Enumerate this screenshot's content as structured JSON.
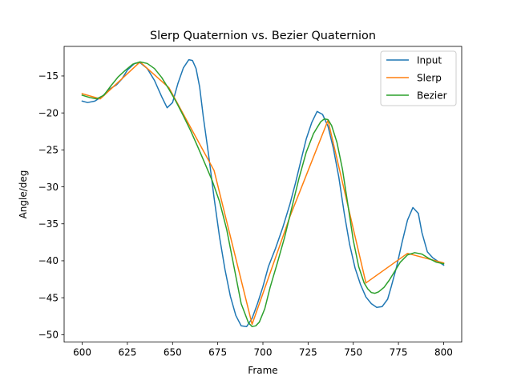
{
  "chart_data": {
    "type": "line",
    "title": "Slerp Quaternion vs. Bezier Quaternion",
    "xlabel": "Frame",
    "ylabel": "Angle/deg",
    "xlim": [
      590,
      810
    ],
    "ylim": [
      -51,
      -11
    ],
    "xticks": [
      600,
      625,
      650,
      675,
      700,
      725,
      750,
      775,
      800
    ],
    "yticks": [
      -15,
      -20,
      -25,
      -30,
      -35,
      -40,
      -45,
      -50
    ],
    "xtick_labels": [
      "600",
      "625",
      "650",
      "675",
      "700",
      "725",
      "750",
      "775",
      "800"
    ],
    "ytick_labels": [
      "−15",
      "−20",
      "−25",
      "−30",
      "−35",
      "−40",
      "−45",
      "−50"
    ],
    "grid": false,
    "legend_position": "top-right",
    "series": [
      {
        "name": "Input",
        "color": "#1f77b4",
        "x": [
          600,
          603,
          607,
          611,
          615,
          619,
          622,
          625,
          629,
          632,
          636,
          640,
          644,
          647,
          650,
          653,
          656,
          659,
          661,
          663,
          665,
          667,
          670,
          673,
          676,
          679,
          682,
          685,
          688,
          691,
          694,
          697,
          700,
          703,
          707,
          711,
          715,
          718,
          721,
          724,
          727,
          730,
          733,
          736,
          739,
          742,
          745,
          748,
          751,
          754,
          757,
          760,
          763,
          766,
          769,
          771,
          774,
          777,
          780,
          783,
          786,
          788,
          791,
          794,
          797,
          800
        ],
        "y": [
          -18.4,
          -18.6,
          -18.4,
          -17.8,
          -16.8,
          -16.2,
          -15.4,
          -14.2,
          -13.3,
          -13.2,
          -14.0,
          -15.6,
          -17.8,
          -19.3,
          -18.6,
          -16.0,
          -13.9,
          -12.8,
          -12.9,
          -14.0,
          -16.5,
          -20.5,
          -25.8,
          -31.5,
          -36.8,
          -41.2,
          -44.8,
          -47.4,
          -48.8,
          -48.9,
          -47.8,
          -45.8,
          -43.5,
          -40.8,
          -38.3,
          -35.5,
          -32.3,
          -29.5,
          -26.5,
          -23.5,
          -21.3,
          -19.8,
          -20.2,
          -21.8,
          -24.8,
          -28.7,
          -33.6,
          -37.8,
          -41.0,
          -43.2,
          -44.9,
          -45.8,
          -46.3,
          -46.2,
          -45.2,
          -43.5,
          -40.8,
          -37.5,
          -34.5,
          -32.8,
          -33.6,
          -36.2,
          -38.8,
          -39.6,
          -40.1,
          -40.6
        ]
      },
      {
        "name": "Slerp",
        "color": "#ff7f0e",
        "x": [
          600,
          610,
          632,
          648,
          673,
          694,
          715,
          736,
          757,
          780,
          800
        ],
        "y": [
          -17.4,
          -18.1,
          -13.1,
          -16.6,
          -27.8,
          -48.6,
          -34.0,
          -21.0,
          -43.0,
          -39.0,
          -40.3
        ]
      },
      {
        "name": "Bezier",
        "color": "#2ca02c",
        "x": [
          600,
          604,
          608,
          612,
          616,
          620,
          624,
          628,
          632,
          636,
          640,
          644,
          648,
          652,
          656,
          660,
          664,
          668,
          672,
          676,
          680,
          684,
          688,
          692,
          694,
          696,
          698,
          701,
          704,
          708,
          712,
          716,
          720,
          724,
          728,
          732,
          734,
          736,
          738,
          741,
          744,
          747,
          750,
          753,
          756,
          758,
          760,
          762,
          764,
          767,
          770,
          773,
          776,
          780,
          784,
          788,
          792,
          796,
          800
        ],
        "y": [
          -17.6,
          -17.9,
          -18.1,
          -17.6,
          -16.3,
          -15.1,
          -14.2,
          -13.4,
          -13.1,
          -13.3,
          -14.0,
          -15.2,
          -16.8,
          -18.5,
          -20.4,
          -22.4,
          -24.6,
          -26.9,
          -29.2,
          -32.0,
          -35.8,
          -40.8,
          -45.8,
          -48.4,
          -48.9,
          -48.8,
          -48.3,
          -46.5,
          -43.6,
          -40.3,
          -36.8,
          -32.8,
          -28.8,
          -25.3,
          -22.8,
          -21.2,
          -20.8,
          -20.9,
          -21.7,
          -24.0,
          -27.6,
          -32.4,
          -37.2,
          -40.8,
          -43.0,
          -43.8,
          -44.3,
          -44.4,
          -44.2,
          -43.6,
          -42.6,
          -41.4,
          -40.2,
          -39.2,
          -38.9,
          -39.1,
          -39.7,
          -40.2,
          -40.4
        ]
      }
    ]
  }
}
